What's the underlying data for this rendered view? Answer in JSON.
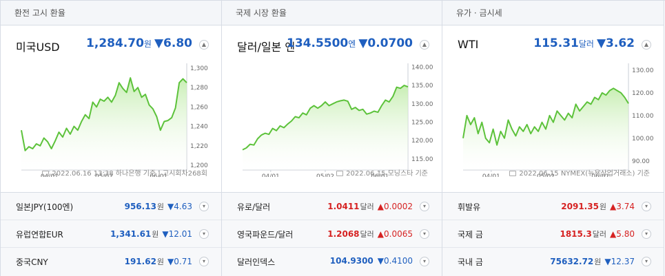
{
  "columns": [
    {
      "header": "환전 고시 환율",
      "main": {
        "title": "미국USD",
        "value": "1,284.70",
        "unit": "원",
        "change": "▼6.80",
        "direction": "down"
      },
      "source": "2022.06.16 13:38 하나은행 기준 | 고시회차268회",
      "rows": [
        {
          "label": "일본JPY(100엔)",
          "value": "956.13",
          "unit": "원",
          "change": "▼4.63",
          "direction": "down"
        },
        {
          "label": "유럽연합EUR",
          "value": "1,341.61",
          "unit": "원",
          "change": "▼12.01",
          "direction": "down"
        },
        {
          "label": "중국CNY",
          "value": "191.62",
          "unit": "원",
          "change": "▼0.71",
          "direction": "down"
        }
      ]
    },
    {
      "header": "국제 시장 환율",
      "main": {
        "title": "달러/일본 엔",
        "value": "134.5500",
        "unit": "엔",
        "change": "▼0.0700",
        "direction": "down"
      },
      "source": "2022.06.15 모닝스타 기준",
      "rows": [
        {
          "label": "유로/달러",
          "value": "1.0411",
          "unit": "달러",
          "change": "▲0.0002",
          "direction": "up"
        },
        {
          "label": "영국파운드/달러",
          "value": "1.2068",
          "unit": "달러",
          "change": "▲0.0065",
          "direction": "up"
        },
        {
          "label": "달러인덱스",
          "value": "104.9300",
          "unit": "",
          "change": "▼0.4100",
          "direction": "down"
        }
      ]
    },
    {
      "header": "유가 · 금시세",
      "main": {
        "title": "WTI",
        "value": "115.31",
        "unit": "달러",
        "change": "▼3.62",
        "direction": "down"
      },
      "source": "2022.06.15 NYMEX(뉴욕상업거래소) 기준",
      "rows": [
        {
          "label": "휘발유",
          "value": "2091.35",
          "unit": "원",
          "change": "▲3.74",
          "direction": "up"
        },
        {
          "label": "국제 금",
          "value": "1815.3",
          "unit": "달러",
          "change": "▲5.80",
          "direction": "up"
        },
        {
          "label": "국내 금",
          "value": "75632.72",
          "unit": "원",
          "change": "▼12.37",
          "direction": "down"
        }
      ]
    }
  ],
  "toggle_icon": "▲",
  "colors": {
    "line": "#5cc23a",
    "fill_top": "#c8eeb4",
    "down": "#1f5fbf",
    "up": "#d62222"
  },
  "chart_data": [
    {
      "type": "area",
      "x_ticks": [
        "04/01",
        "05/02",
        "06/01"
      ],
      "y_ticks": [
        "1,300",
        "1,280",
        "1,260",
        "1,240",
        "1,220",
        "1,200"
      ],
      "ylim": [
        1195,
        1305
      ],
      "values": [
        1236,
        1215,
        1219,
        1217,
        1222,
        1220,
        1228,
        1224,
        1217,
        1225,
        1234,
        1229,
        1238,
        1232,
        1240,
        1236,
        1245,
        1252,
        1248,
        1265,
        1260,
        1268,
        1266,
        1270,
        1265,
        1272,
        1285,
        1279,
        1275,
        1290,
        1276,
        1280,
        1270,
        1273,
        1262,
        1258,
        1250,
        1236,
        1245,
        1246,
        1249,
        1259,
        1285,
        1289,
        1285
      ]
    },
    {
      "type": "area",
      "x_ticks": [
        "04/01",
        "05/02",
        "06/01"
      ],
      "y_ticks": [
        "140.00",
        "135.00",
        "130.00",
        "125.00",
        "120.00",
        "115.00"
      ],
      "ylim": [
        112,
        141
      ],
      "values": [
        117.5,
        118,
        119,
        118.8,
        120.5,
        121.5,
        122,
        121.7,
        123.3,
        122.7,
        124,
        123.5,
        124.5,
        125.3,
        126.5,
        126.2,
        127.5,
        127,
        128.8,
        129.5,
        128.8,
        129.5,
        130.5,
        129.5,
        130,
        130.5,
        130.8,
        131,
        130.7,
        128.5,
        129,
        128.2,
        128.5,
        127.2,
        127.5,
        128,
        127.7,
        129.5,
        131,
        130.5,
        132,
        134.5,
        134.2,
        135,
        134.6
      ]
    },
    {
      "type": "area",
      "x_ticks": [
        "04/01",
        "05/02",
        "06/01"
      ],
      "y_ticks": [
        "130.00",
        "120.00",
        "110.00",
        "100.00",
        "90.00"
      ],
      "ylim": [
        86,
        133
      ],
      "values": [
        100,
        110,
        106,
        109,
        102,
        107,
        100,
        98,
        104,
        97,
        103,
        100,
        108,
        104,
        101,
        105,
        103,
        106,
        102,
        105,
        103,
        107,
        104,
        110,
        107,
        112,
        110,
        108,
        111,
        109,
        115,
        112,
        114,
        116,
        115,
        118,
        117,
        120,
        119,
        121,
        122,
        121,
        120,
        118,
        115.3
      ]
    }
  ]
}
